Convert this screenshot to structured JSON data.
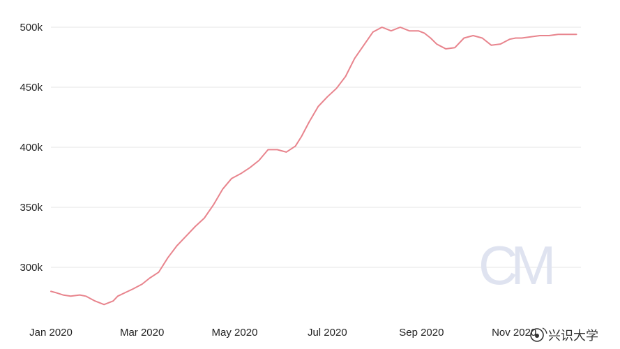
{
  "chart_data": {
    "type": "line",
    "title": "",
    "xlabel": "",
    "ylabel": "",
    "ylim": [
      270000,
      505000
    ],
    "yticks": [
      {
        "value": 300000,
        "label": "300k"
      },
      {
        "value": 350000,
        "label": "350k"
      },
      {
        "value": 400000,
        "label": "400k"
      },
      {
        "value": 450000,
        "label": "450k"
      },
      {
        "value": 500000,
        "label": "500k"
      }
    ],
    "xticks": [
      {
        "value": "2020-01-01",
        "label": "Jan 2020"
      },
      {
        "value": "2020-03-01",
        "label": "Mar 2020"
      },
      {
        "value": "2020-05-01",
        "label": "May 2020"
      },
      {
        "value": "2020-07-01",
        "label": "Jul 2020"
      },
      {
        "value": "2020-09-01",
        "label": "Sep 2020"
      },
      {
        "value": "2020-11-01",
        "label": "Nov 2020"
      }
    ],
    "xlim": [
      "2020-01-01",
      "2020-12-15"
    ],
    "grid": "horizontal",
    "series": [
      {
        "color": "#e8848d",
        "x": [
          "2020-01-01",
          "2020-01-04",
          "2020-01-09",
          "2020-01-14",
          "2020-01-20",
          "2020-01-24",
          "2020-01-30",
          "2020-02-05",
          "2020-02-11",
          "2020-02-14",
          "2020-02-19",
          "2020-02-24",
          "2020-03-01",
          "2020-03-06",
          "2020-03-12",
          "2020-03-18",
          "2020-03-24",
          "2020-03-30",
          "2020-04-05",
          "2020-04-11",
          "2020-04-17",
          "2020-04-23",
          "2020-04-29",
          "2020-05-05",
          "2020-05-11",
          "2020-05-17",
          "2020-05-23",
          "2020-05-29",
          "2020-06-04",
          "2020-06-10",
          "2020-06-14",
          "2020-06-19",
          "2020-06-25",
          "2020-07-01",
          "2020-07-07",
          "2020-07-13",
          "2020-07-19",
          "2020-07-25",
          "2020-07-31",
          "2020-08-06",
          "2020-08-12",
          "2020-08-18",
          "2020-08-24",
          "2020-08-30",
          "2020-09-03",
          "2020-09-07",
          "2020-09-11",
          "2020-09-17",
          "2020-09-23",
          "2020-09-29",
          "2020-10-05",
          "2020-10-11",
          "2020-10-17",
          "2020-10-23",
          "2020-10-29",
          "2020-11-02",
          "2020-11-06",
          "2020-11-12",
          "2020-11-18",
          "2020-11-24",
          "2020-11-30",
          "2020-12-06",
          "2020-12-12"
        ],
        "values": [
          280000,
          279000,
          277000,
          276000,
          277000,
          276000,
          272000,
          269000,
          272000,
          276000,
          279000,
          282000,
          286000,
          291000,
          296000,
          308000,
          318000,
          326000,
          334000,
          341000,
          352000,
          365000,
          374000,
          378000,
          383000,
          389000,
          398000,
          398000,
          396000,
          401000,
          409000,
          421000,
          434000,
          442000,
          449000,
          459000,
          474000,
          485000,
          496000,
          500000,
          497000,
          500000,
          497000,
          497000,
          495000,
          491000,
          486000,
          482000,
          483000,
          491000,
          493000,
          491000,
          485000,
          486000,
          490000,
          491000,
          491000,
          492000,
          493000,
          493000,
          494000,
          494000,
          494000
        ]
      }
    ]
  },
  "watermark": {
    "logo_icon": "cm-logo",
    "text_icon": "weibo-logo"
  }
}
